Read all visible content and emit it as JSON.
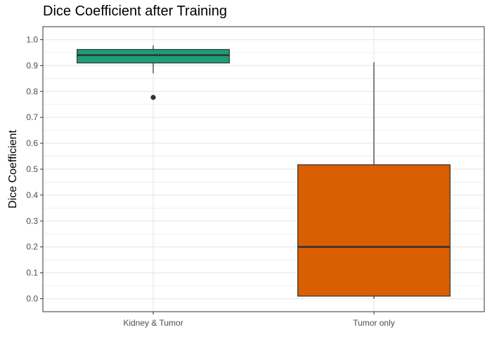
{
  "chart_data": {
    "type": "boxplot",
    "title": "Dice Coefficient after Training",
    "xlabel": "",
    "ylabel": "Dice Coefficient",
    "ylim": [
      -0.05,
      1.05
    ],
    "y_ticks": [
      0.0,
      0.1,
      0.2,
      0.3,
      0.4,
      0.5,
      0.6,
      0.7,
      0.8,
      0.9,
      1.0
    ],
    "y_tick_labels": [
      "0.0",
      "0.1",
      "0.2",
      "0.3",
      "0.4",
      "0.5",
      "0.6",
      "0.7",
      "0.8",
      "0.9",
      "1.0"
    ],
    "grid": true,
    "legend": "none",
    "categories": [
      "Kidney & Tumor",
      "Tumor only"
    ],
    "boxes": [
      {
        "category": "Kidney & Tumor",
        "whisker_low": 0.87,
        "q1": 0.91,
        "median": 0.94,
        "q3": 0.962,
        "whisker_high": 0.978,
        "outliers": [
          0.777
        ],
        "color": "#1b9e77"
      },
      {
        "category": "Tumor only",
        "whisker_low": 0.0,
        "q1": 0.01,
        "median": 0.2,
        "q3": 0.517,
        "whisker_high": 0.913,
        "outliers": [],
        "color": "#d95f02"
      }
    ],
    "colors": {
      "panel_border": "#333333",
      "grid": "#ebebeb",
      "box_line": "#333333"
    }
  }
}
